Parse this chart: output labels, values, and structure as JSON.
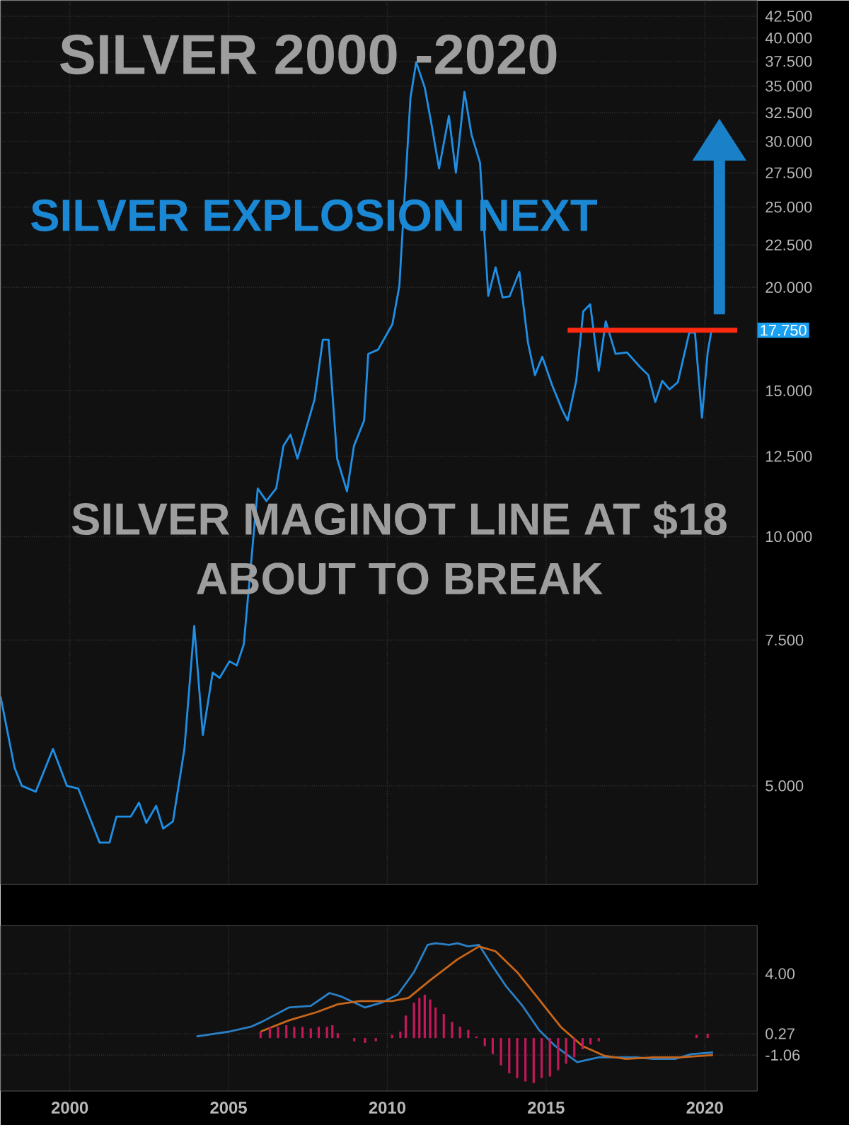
{
  "chart_data": [
    {
      "type": "line",
      "title": "SILVER 2000 -2020",
      "annotations": [
        "SILVER EXPLOSION NEXT",
        "SILVER MAGINOT LINE AT $18",
        "ABOUT TO BREAK",
        "17.750"
      ],
      "x": [
        1997.82,
        1998.26,
        1998.49,
        1998.93,
        1999.47,
        1999.91,
        2000.27,
        2000.94,
        2001.25,
        2001.47,
        2001.92,
        2002.18,
        2002.41,
        2002.72,
        2002.94,
        2003.25,
        2003.61,
        2003.92,
        2004.19,
        2004.5,
        2004.72,
        2005.03,
        2005.26,
        2005.48,
        2005.92,
        2006.19,
        2006.5,
        2006.73,
        2006.95,
        2007.17,
        2007.71,
        2007.97,
        2008.15,
        2008.42,
        2008.73,
        2008.95,
        2009.27,
        2009.4,
        2009.71,
        2010.16,
        2010.38,
        2010.51,
        2010.73,
        2010.91,
        2011.18,
        2011.4,
        2011.63,
        2011.94,
        2012.16,
        2012.43,
        2012.65,
        2012.92,
        2013.18,
        2013.41,
        2013.63,
        2013.85,
        2014.16,
        2014.43,
        2014.65,
        2014.88,
        2015.19,
        2015.5,
        2015.68,
        2015.95,
        2016.17,
        2016.39,
        2016.66,
        2016.88,
        2017.19,
        2017.55,
        2017.95,
        2018.22,
        2018.44,
        2018.66,
        2018.89,
        2019.15,
        2019.51,
        2019.69,
        2019.91,
        2020.09,
        2020.22
      ],
      "series": [
        {
          "color": "#1f8fe5",
          "values": [
            6.41,
            5.26,
            5.0,
            4.92,
            5.54,
            5.0,
            4.96,
            4.27,
            4.27,
            4.59,
            4.59,
            4.77,
            4.51,
            4.73,
            4.44,
            4.53,
            5.54,
            7.8,
            5.76,
            6.85,
            6.75,
            7.07,
            6.99,
            7.41,
            11.43,
            11.04,
            11.43,
            12.87,
            13.28,
            12.42,
            14.65,
            17.29,
            17.29,
            12.42,
            11.34,
            12.87,
            13.81,
            16.62,
            16.82,
            18.05,
            20.08,
            24.45,
            33.9,
            37.41,
            34.85,
            31.34,
            27.84,
            32.21,
            27.51,
            34.44,
            30.61,
            28.28,
            19.53,
            21.14,
            19.45,
            19.5,
            20.88,
            17.15,
            15.67,
            16.49,
            15.24,
            14.25,
            13.81,
            15.42,
            18.7,
            19.08,
            15.86,
            18.2,
            16.62,
            16.69,
            16.04,
            15.67,
            14.54,
            15.42,
            15.06,
            15.36,
            17.63,
            17.63,
            13.92,
            16.69,
            17.84
          ]
        },
        {
          "type": "line",
          "color": "#ff2a10",
          "x": [
            2015.68,
            2021.02
          ],
          "values": [
            17.75,
            17.75
          ]
        }
      ],
      "xlim": [
        1997.82,
        2021.65
      ],
      "ylim": [
        3.8,
        44.4
      ],
      "xticks": [
        2000,
        2005,
        2010,
        2015,
        2020
      ],
      "yticks": [
        {
          "value": 5,
          "label": "5.000"
        },
        {
          "value": 7.5,
          "label": "7.500"
        },
        {
          "value": 10,
          "label": "10.000"
        },
        {
          "value": 12.5,
          "label": "12.500"
        },
        {
          "value": 15,
          "label": "15.000"
        },
        {
          "value": 20,
          "label": "20.000"
        },
        {
          "value": 22.5,
          "label": "22.500"
        },
        {
          "value": 25,
          "label": "25.000"
        },
        {
          "value": 27.5,
          "label": "27.500"
        },
        {
          "value": 30,
          "label": "30.000"
        },
        {
          "value": 32.5,
          "label": "32.500"
        },
        {
          "value": 35,
          "label": "35.000"
        },
        {
          "value": 37.5,
          "label": "37.500"
        },
        {
          "value": 40,
          "label": "40.000"
        },
        {
          "value": 42.5,
          "label": "42.500"
        }
      ],
      "log": "y",
      "grid": true,
      "tick_labels": "y"
    },
    {
      "type": "line",
      "x": [
        2003.99,
        2005.02,
        2005.7,
        2006.04,
        2006.9,
        2007.59,
        2008.18,
        2008.53,
        2009.3,
        2009.81,
        2010.33,
        2010.84,
        2011.27,
        2011.52,
        2011.95,
        2012.21,
        2012.55,
        2012.89,
        2013.24,
        2013.75,
        2014.26,
        2014.78,
        2015.29,
        2015.98,
        2016.66,
        2017.17,
        2017.86,
        2018.37,
        2019.06,
        2019.57,
        2020.26
      ],
      "series": [
        {
          "color": "#2b7fc4",
          "values": [
            0.1,
            0.4,
            0.7,
            1.0,
            1.9,
            2.0,
            2.8,
            2.6,
            1.9,
            2.2,
            2.7,
            4.1,
            5.8,
            5.9,
            5.8,
            5.9,
            5.7,
            5.8,
            4.7,
            3.2,
            2.0,
            0.5,
            -0.5,
            -1.5,
            -1.2,
            -1.2,
            -1.2,
            -1.3,
            -1.3,
            -1.0,
            -0.9
          ]
        },
        {
          "color": "#c8661a",
          "x": [
            2006.01,
            2006.9,
            2007.76,
            2008.44,
            2009.13,
            2010.15,
            2010.67,
            2011.35,
            2012.21,
            2012.89,
            2013.41,
            2014.09,
            2014.78,
            2015.46,
            2016.15,
            2016.83,
            2017.52,
            2018.37,
            2019.23,
            2020.26
          ],
          "values": [
            0.4,
            1.1,
            1.6,
            2.1,
            2.3,
            2.3,
            2.5,
            3.6,
            4.9,
            5.7,
            5.4,
            4.1,
            2.4,
            0.7,
            -0.5,
            -1.1,
            -1.3,
            -1.2,
            -1.2,
            -1.06
          ]
        },
        {
          "type": "bar",
          "color": "#c2185b",
          "x": [
            2006.01,
            2006.3,
            2006.56,
            2006.82,
            2007.07,
            2007.33,
            2007.59,
            2007.84,
            2008.1,
            2008.27,
            2008.44,
            2008.96,
            2009.3,
            2009.64,
            2010.15,
            2010.41,
            2010.58,
            2010.84,
            2011.01,
            2011.18,
            2011.35,
            2011.52,
            2011.78,
            2012.04,
            2012.29,
            2012.55,
            2012.81,
            2013.07,
            2013.32,
            2013.58,
            2013.84,
            2014.09,
            2014.35,
            2014.61,
            2014.86,
            2015.12,
            2015.38,
            2015.63,
            2015.89,
            2016.15,
            2016.4,
            2016.66,
            2019.74,
            2020.09
          ],
          "values": [
            0.4,
            0.7,
            0.7,
            0.8,
            0.7,
            0.7,
            0.6,
            0.7,
            0.7,
            0.8,
            0.3,
            -0.2,
            -0.3,
            -0.2,
            0.2,
            0.4,
            1.4,
            2.2,
            2.5,
            2.7,
            2.4,
            1.9,
            1.5,
            1.0,
            0.7,
            0.5,
            0.1,
            -0.5,
            -1.0,
            -1.7,
            -2.2,
            -2.5,
            -2.7,
            -2.8,
            -2.5,
            -2.4,
            -2.0,
            -1.6,
            -1.2,
            -0.7,
            -0.4,
            -0.2,
            0.2,
            0.27
          ]
        }
      ],
      "xlim": [
        1997.82,
        2021.65
      ],
      "ylim": [
        -3.3,
        7.0
      ],
      "xticks": [
        2000,
        2005,
        2010,
        2015,
        2020
      ],
      "yticks": [
        {
          "value": 4,
          "label": "4.00"
        },
        {
          "value": 0.27,
          "label": "0.27"
        },
        {
          "value": -1.06,
          "label": "-1.06"
        }
      ],
      "grid": true
    }
  ]
}
